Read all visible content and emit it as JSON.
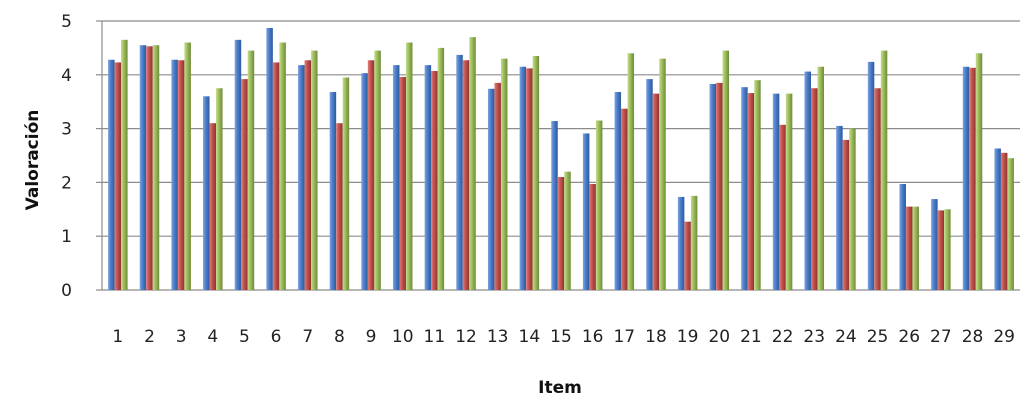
{
  "chart_data": {
    "type": "bar",
    "title": "",
    "xlabel": "Item",
    "ylabel": "Valoración",
    "ylim": [
      0,
      5
    ],
    "yticks": [
      "0",
      "1",
      "2",
      "3",
      "4",
      "5"
    ],
    "grid": "horizontal",
    "categories": [
      "1",
      "2",
      "3",
      "4",
      "5",
      "6",
      "7",
      "8",
      "9",
      "10",
      "11",
      "12",
      "13",
      "14",
      "15",
      "16",
      "17",
      "18",
      "19",
      "20",
      "21",
      "22",
      "23",
      "24",
      "25",
      "26",
      "27",
      "28",
      "29"
    ],
    "series": [
      {
        "color": "#4a7cc9",
        "values": [
          4.28,
          4.55,
          4.28,
          3.6,
          4.65,
          4.87,
          4.18,
          3.68,
          4.03,
          4.18,
          4.18,
          4.37,
          3.74,
          4.15,
          3.14,
          2.91,
          3.68,
          3.92,
          1.73,
          3.83,
          3.77,
          3.65,
          4.06,
          3.05,
          4.24,
          1.97,
          1.69,
          4.15,
          2.63
        ]
      },
      {
        "color": "#c0504d",
        "values": [
          4.23,
          4.53,
          4.27,
          3.1,
          3.92,
          4.23,
          4.27,
          3.1,
          4.27,
          3.96,
          4.07,
          4.27,
          3.85,
          4.12,
          2.1,
          1.97,
          3.37,
          3.65,
          1.27,
          3.85,
          3.66,
          3.07,
          3.75,
          2.79,
          3.75,
          1.55,
          1.48,
          4.13,
          2.55
        ]
      },
      {
        "color": "#9bbb59",
        "values": [
          4.65,
          4.55,
          4.6,
          3.75,
          4.45,
          4.6,
          4.45,
          3.95,
          4.45,
          4.6,
          4.5,
          4.7,
          4.3,
          4.35,
          2.2,
          3.15,
          4.4,
          4.3,
          1.75,
          4.45,
          3.9,
          3.65,
          4.15,
          3.0,
          4.45,
          1.55,
          1.5,
          4.4,
          2.45
        ]
      }
    ]
  }
}
